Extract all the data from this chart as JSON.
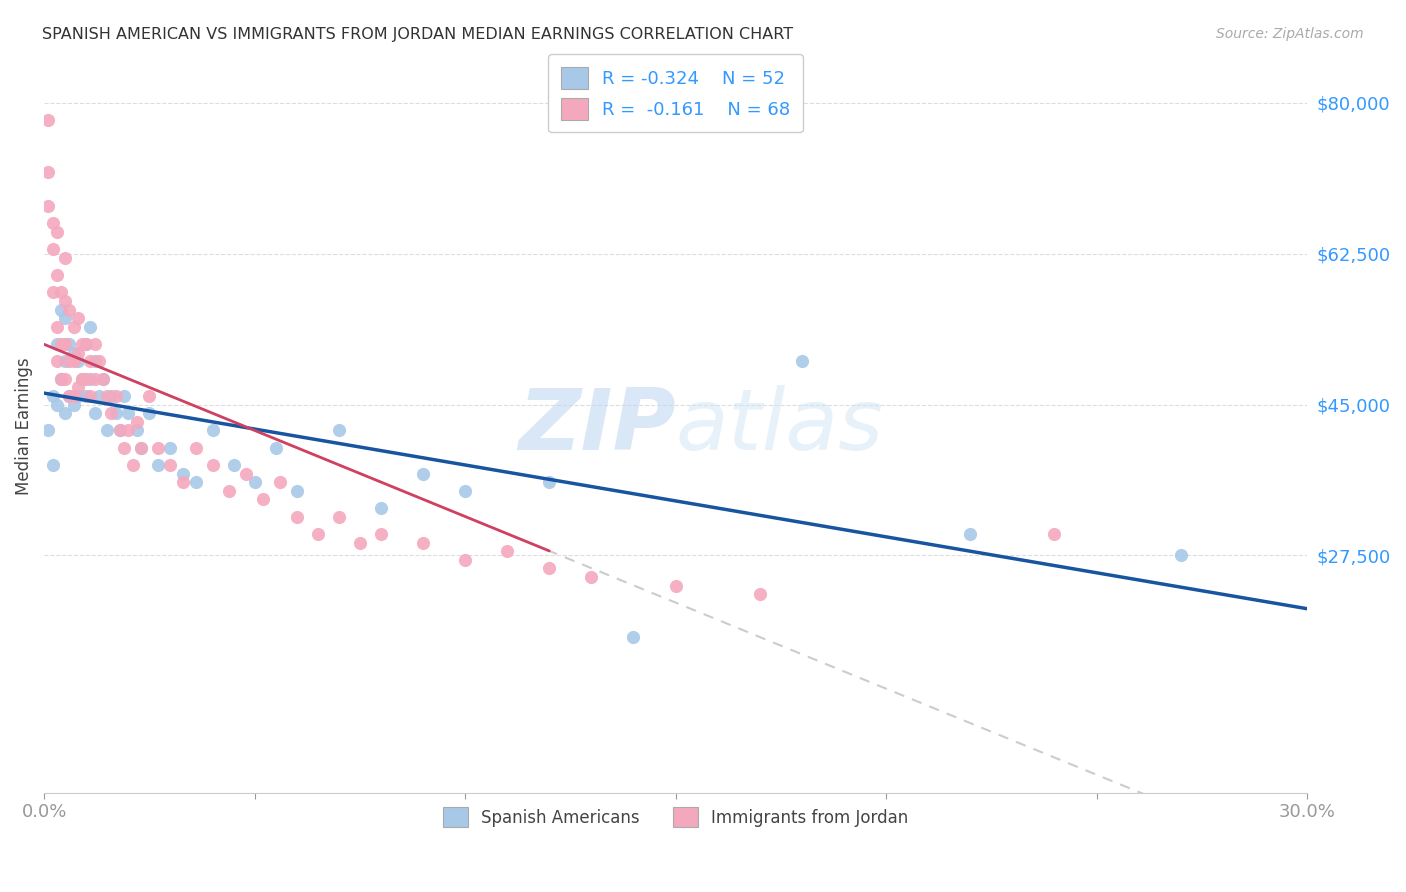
{
  "title": "SPANISH AMERICAN VS IMMIGRANTS FROM JORDAN MEDIAN EARNINGS CORRELATION CHART",
  "source": "Source: ZipAtlas.com",
  "ylabel": "Median Earnings",
  "yticks": [
    0,
    27500,
    45000,
    62500,
    80000
  ],
  "ytick_labels": [
    "",
    "$27,500",
    "$45,000",
    "$62,500",
    "$80,000"
  ],
  "xlim": [
    0.0,
    0.3
  ],
  "ylim": [
    0,
    85000
  ],
  "watermark_zip": "ZIP",
  "watermark_atlas": "atlas",
  "legend_r1": "R = -0.324",
  "legend_n1": "N = 52",
  "legend_r2": "R =  -0.161",
  "legend_n2": "N = 68",
  "label1": "Spanish Americans",
  "label2": "Immigrants from Jordan",
  "color1": "#a8c8e8",
  "color2": "#f4a8be",
  "trendline1_color": "#1855a0",
  "trendline2_color": "#d04060",
  "trendline_dashed_color": "#cccccc",
  "background_color": "#ffffff",
  "spanish_americans_x": [
    0.001,
    0.002,
    0.002,
    0.003,
    0.003,
    0.004,
    0.004,
    0.005,
    0.005,
    0.005,
    0.006,
    0.006,
    0.007,
    0.007,
    0.008,
    0.008,
    0.009,
    0.01,
    0.01,
    0.011,
    0.011,
    0.012,
    0.012,
    0.013,
    0.014,
    0.015,
    0.016,
    0.017,
    0.018,
    0.019,
    0.02,
    0.022,
    0.023,
    0.025,
    0.027,
    0.03,
    0.033,
    0.036,
    0.04,
    0.045,
    0.05,
    0.055,
    0.06,
    0.07,
    0.08,
    0.09,
    0.1,
    0.12,
    0.14,
    0.18,
    0.22,
    0.27
  ],
  "spanish_americans_y": [
    42000,
    38000,
    46000,
    45000,
    52000,
    48000,
    56000,
    44000,
    50000,
    55000,
    46000,
    52000,
    45000,
    51000,
    46000,
    50000,
    48000,
    46000,
    52000,
    48000,
    54000,
    44000,
    50000,
    46000,
    48000,
    42000,
    46000,
    44000,
    42000,
    46000,
    44000,
    42000,
    40000,
    44000,
    38000,
    40000,
    37000,
    36000,
    42000,
    38000,
    36000,
    40000,
    35000,
    42000,
    33000,
    37000,
    35000,
    36000,
    18000,
    50000,
    30000,
    27500
  ],
  "jordan_x": [
    0.001,
    0.001,
    0.001,
    0.002,
    0.002,
    0.002,
    0.003,
    0.003,
    0.003,
    0.003,
    0.004,
    0.004,
    0.004,
    0.005,
    0.005,
    0.005,
    0.005,
    0.006,
    0.006,
    0.006,
    0.007,
    0.007,
    0.007,
    0.008,
    0.008,
    0.008,
    0.009,
    0.009,
    0.01,
    0.01,
    0.011,
    0.011,
    0.012,
    0.012,
    0.013,
    0.014,
    0.015,
    0.016,
    0.017,
    0.018,
    0.019,
    0.02,
    0.021,
    0.022,
    0.023,
    0.025,
    0.027,
    0.03,
    0.033,
    0.036,
    0.04,
    0.044,
    0.048,
    0.052,
    0.056,
    0.06,
    0.065,
    0.07,
    0.075,
    0.08,
    0.09,
    0.1,
    0.11,
    0.12,
    0.13,
    0.15,
    0.17,
    0.24
  ],
  "jordan_y": [
    78000,
    68000,
    72000,
    63000,
    58000,
    66000,
    60000,
    54000,
    50000,
    65000,
    58000,
    52000,
    48000,
    57000,
    52000,
    48000,
    62000,
    56000,
    50000,
    46000,
    54000,
    50000,
    46000,
    55000,
    51000,
    47000,
    52000,
    48000,
    52000,
    48000,
    50000,
    46000,
    52000,
    48000,
    50000,
    48000,
    46000,
    44000,
    46000,
    42000,
    40000,
    42000,
    38000,
    43000,
    40000,
    46000,
    40000,
    38000,
    36000,
    40000,
    38000,
    35000,
    37000,
    34000,
    36000,
    32000,
    30000,
    32000,
    29000,
    30000,
    29000,
    27000,
    28000,
    26000,
    25000,
    24000,
    23000,
    30000
  ]
}
